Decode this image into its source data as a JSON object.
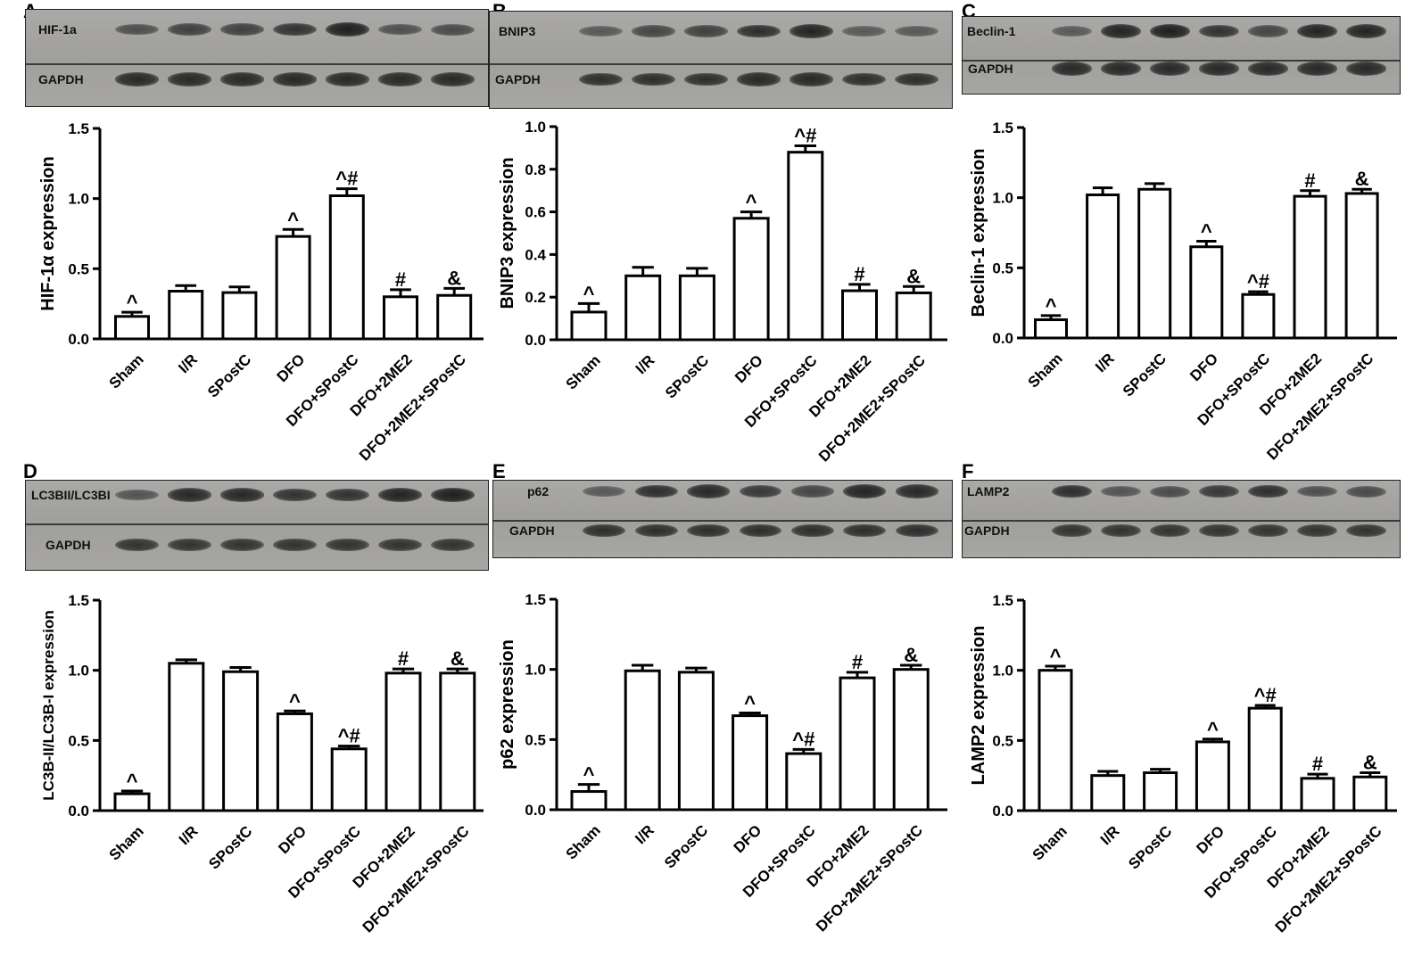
{
  "panels": [
    {
      "id": "A",
      "blot": {
        "top_label": "HIF-1a",
        "bottom_label": "GAPDH",
        "top_bands": [
          0.45,
          0.6,
          0.6,
          0.75,
          0.95,
          0.45,
          0.5
        ],
        "bottom_bands": [
          0.85,
          0.85,
          0.85,
          0.85,
          0.85,
          0.85,
          0.85
        ]
      },
      "chart_data": {
        "type": "bar",
        "categories": [
          "Sham",
          "I/R",
          "SPostC",
          "DFO",
          "DFO+SPostC",
          "DFO+2ME2",
          "DFO+2ME2+SPostC"
        ],
        "values": [
          0.16,
          0.34,
          0.33,
          0.73,
          1.02,
          0.3,
          0.31
        ],
        "errors": [
          0.03,
          0.04,
          0.04,
          0.05,
          0.05,
          0.05,
          0.05
        ],
        "markers": [
          "^",
          "",
          "",
          "^",
          "^#",
          "#",
          "&"
        ],
        "ylabel": "HIF-1α expression",
        "ylim": [
          0,
          1.5
        ],
        "yticks": [
          "0.0",
          "0.5",
          "1.0",
          "1.5"
        ],
        "grid": false
      }
    },
    {
      "id": "B",
      "blot": {
        "top_label": "BNIP3",
        "bottom_label": "GAPDH",
        "top_bands": [
          0.35,
          0.55,
          0.6,
          0.8,
          0.9,
          0.35,
          0.35
        ],
        "bottom_bands": [
          0.8,
          0.8,
          0.8,
          0.85,
          0.85,
          0.8,
          0.8
        ]
      },
      "chart_data": {
        "type": "bar",
        "categories": [
          "Sham",
          "I/R",
          "SPostC",
          "DFO",
          "DFO+SPostC",
          "DFO+2ME2",
          "DFO+2ME2+SPostC"
        ],
        "values": [
          0.13,
          0.3,
          0.3,
          0.57,
          0.88,
          0.23,
          0.22
        ],
        "errors": [
          0.04,
          0.04,
          0.035,
          0.03,
          0.03,
          0.03,
          0.03
        ],
        "markers": [
          "^",
          "",
          "",
          "^",
          "^#",
          "#",
          "&"
        ],
        "ylabel": "BNIP3 expression",
        "ylim": [
          0,
          1.0
        ],
        "yticks": [
          "0.0",
          "0.2",
          "0.4",
          "0.6",
          "0.8",
          "1.0"
        ],
        "grid": false
      }
    },
    {
      "id": "C",
      "blot": {
        "top_label": "Beclin-1",
        "bottom_label": "GAPDH",
        "top_bands": [
          0.35,
          0.9,
          0.95,
          0.75,
          0.55,
          0.9,
          0.9
        ],
        "bottom_bands": [
          0.85,
          0.85,
          0.85,
          0.85,
          0.85,
          0.85,
          0.85
        ]
      },
      "chart_data": {
        "type": "bar",
        "categories": [
          "Sham",
          "I/R",
          "SPostC",
          "DFO",
          "DFO+SPostC",
          "DFO+2ME2",
          "DFO+2ME2+SPostC"
        ],
        "values": [
          0.13,
          1.02,
          1.06,
          0.65,
          0.31,
          1.01,
          1.03
        ],
        "errors": [
          0.03,
          0.05,
          0.04,
          0.04,
          0.02,
          0.04,
          0.03
        ],
        "markers": [
          "^",
          "",
          "",
          "^",
          "^#",
          "#",
          "&"
        ],
        "ylabel": "Beclin-1 expression",
        "ylim": [
          0,
          1.5
        ],
        "yticks": [
          "0.0",
          "0.5",
          "1.0",
          "1.5"
        ],
        "grid": false
      }
    },
    {
      "id": "D",
      "blot": {
        "top_label": "LC3BII/LC3BI",
        "bottom_label": "GAPDH",
        "top_bands": [
          0.4,
          0.85,
          0.85,
          0.75,
          0.75,
          0.9,
          0.95
        ],
        "bottom_bands": [
          0.75,
          0.75,
          0.75,
          0.75,
          0.75,
          0.75,
          0.75
        ]
      },
      "chart_data": {
        "type": "bar",
        "categories": [
          "Sham",
          "I/R",
          "SPostC",
          "DFO",
          "DFO+SPostC",
          "DFO+2ME2",
          "DFO+2ME2+SPostC"
        ],
        "values": [
          0.12,
          1.05,
          0.99,
          0.69,
          0.44,
          0.98,
          0.98
        ],
        "errors": [
          0.02,
          0.025,
          0.03,
          0.02,
          0.02,
          0.03,
          0.03
        ],
        "markers": [
          "^",
          "",
          "",
          "^",
          "^#",
          "#",
          "&"
        ],
        "ylabel": "LC3B-II/LC3B-I expression",
        "ylim": [
          0,
          1.5
        ],
        "yticks": [
          "0.0",
          "0.5",
          "1.0",
          "1.5"
        ],
        "grid": false
      }
    },
    {
      "id": "E",
      "blot": {
        "top_label": "p62",
        "bottom_label": "GAPDH",
        "top_bands": [
          0.35,
          0.8,
          0.85,
          0.7,
          0.55,
          0.9,
          0.85
        ],
        "bottom_bands": [
          0.8,
          0.8,
          0.8,
          0.8,
          0.8,
          0.8,
          0.8
        ]
      },
      "chart_data": {
        "type": "bar",
        "categories": [
          "Sham",
          "I/R",
          "SPostC",
          "DFO",
          "DFO+SPostC",
          "DFO+2ME2",
          "DFO+2ME2+SPostC"
        ],
        "values": [
          0.13,
          0.99,
          0.98,
          0.67,
          0.4,
          0.94,
          1.0
        ],
        "errors": [
          0.05,
          0.04,
          0.03,
          0.02,
          0.03,
          0.04,
          0.03
        ],
        "markers": [
          "^",
          "",
          "",
          "^",
          "^#",
          "#",
          "&"
        ],
        "ylabel": "p62 expression",
        "ylim": [
          0,
          1.5
        ],
        "yticks": [
          "0.0",
          "0.5",
          "1.0",
          "1.5"
        ],
        "grid": false
      }
    },
    {
      "id": "F",
      "blot": {
        "top_label": "LAMP2",
        "bottom_label": "GAPDH",
        "top_bands": [
          0.8,
          0.4,
          0.5,
          0.7,
          0.8,
          0.45,
          0.5
        ],
        "bottom_bands": [
          0.75,
          0.75,
          0.75,
          0.75,
          0.75,
          0.75,
          0.75
        ]
      },
      "chart_data": {
        "type": "bar",
        "categories": [
          "Sham",
          "I/R",
          "SPostC",
          "DFO",
          "DFO+SPostC",
          "DFO+2ME2",
          "DFO+2ME2+SPostC"
        ],
        "values": [
          1.0,
          0.25,
          0.27,
          0.49,
          0.73,
          0.23,
          0.24
        ],
        "errors": [
          0.03,
          0.03,
          0.025,
          0.02,
          0.02,
          0.03,
          0.03
        ],
        "markers": [
          "^",
          "",
          "",
          "^",
          "^#",
          "#",
          "&"
        ],
        "ylabel": "LAMP2 expression",
        "ylim": [
          0,
          1.5
        ],
        "yticks": [
          "0.0",
          "0.5",
          "1.0",
          "1.5"
        ],
        "grid": false
      }
    }
  ]
}
